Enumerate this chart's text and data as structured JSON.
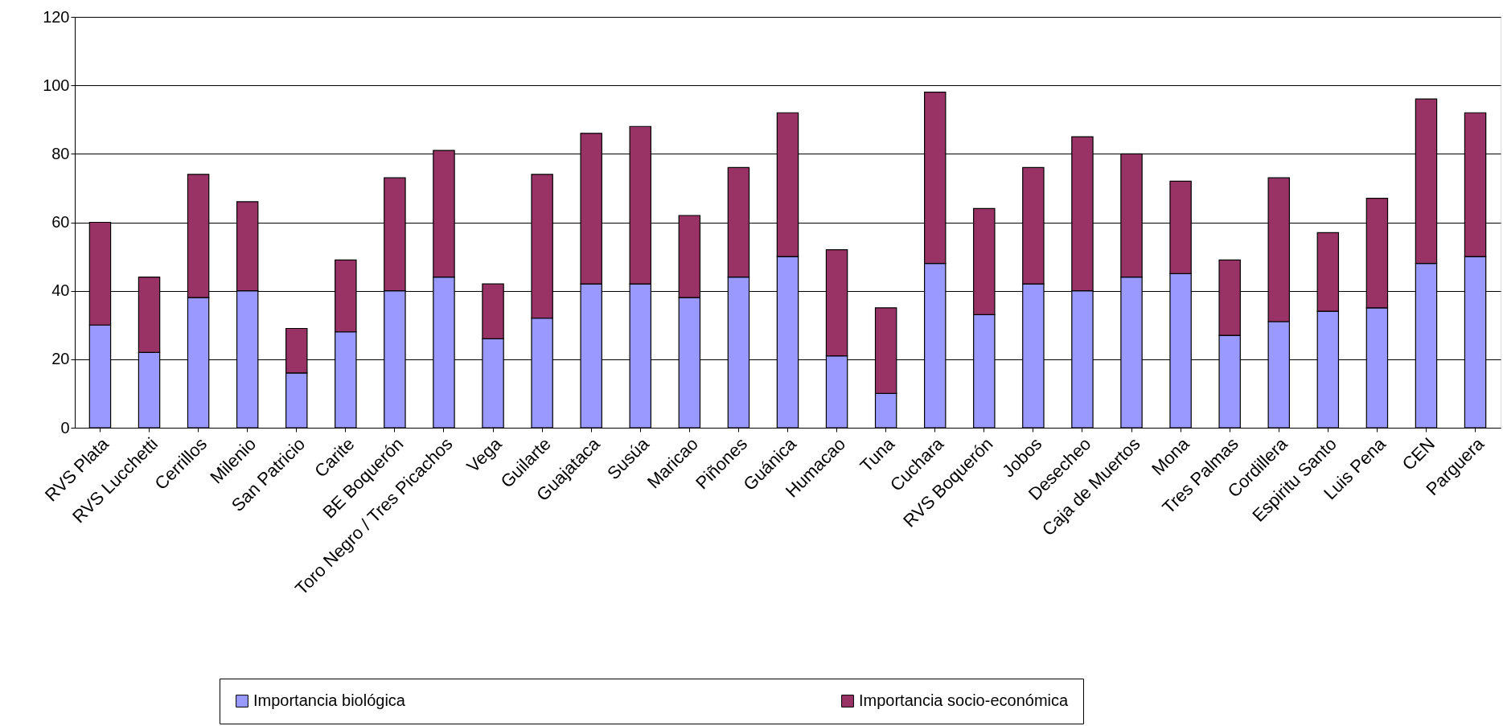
{
  "chart_data": {
    "type": "bar",
    "stacked": true,
    "categories": [
      "RVS Plata",
      "RVS Lucchetti",
      "Cerrillos",
      "Milenio",
      "San Patricio",
      "Carite",
      "BE Boquerón",
      "Toro Negro / Tres Picachos",
      "Vega",
      "Guilarte",
      "Guajataca",
      "Susúa",
      "Maricao",
      "Piñones",
      "Guánica",
      "Humacao",
      "Tuna",
      "Cuchara",
      "RVS Boquerón",
      "Jobos",
      "Desecheo",
      "Caja de Muertos",
      "Mona",
      "Tres Palmas",
      "Cordillera",
      "Espiritu Santo",
      "Luis Pena",
      "CEN",
      "Parguera"
    ],
    "series": [
      {
        "name": "Importancia biológica",
        "color": "#9999ff",
        "values": [
          30,
          22,
          38,
          40,
          16,
          28,
          40,
          44,
          26,
          32,
          42,
          42,
          38,
          44,
          50,
          21,
          10,
          48,
          33,
          42,
          40,
          44,
          45,
          27,
          31,
          34,
          35,
          48,
          50
        ]
      },
      {
        "name": "Importancia socio-económica",
        "color": "#993366",
        "values": [
          30,
          22,
          36,
          26,
          13,
          21,
          33,
          37,
          16,
          42,
          44,
          46,
          24,
          32,
          42,
          31,
          25,
          50,
          31,
          34,
          45,
          36,
          27,
          22,
          42,
          23,
          32,
          48,
          42
        ]
      }
    ],
    "ylim": [
      0,
      120
    ],
    "yticks": [
      0,
      20,
      40,
      60,
      80,
      100,
      120
    ],
    "grid": "y",
    "legend": "bottom"
  }
}
